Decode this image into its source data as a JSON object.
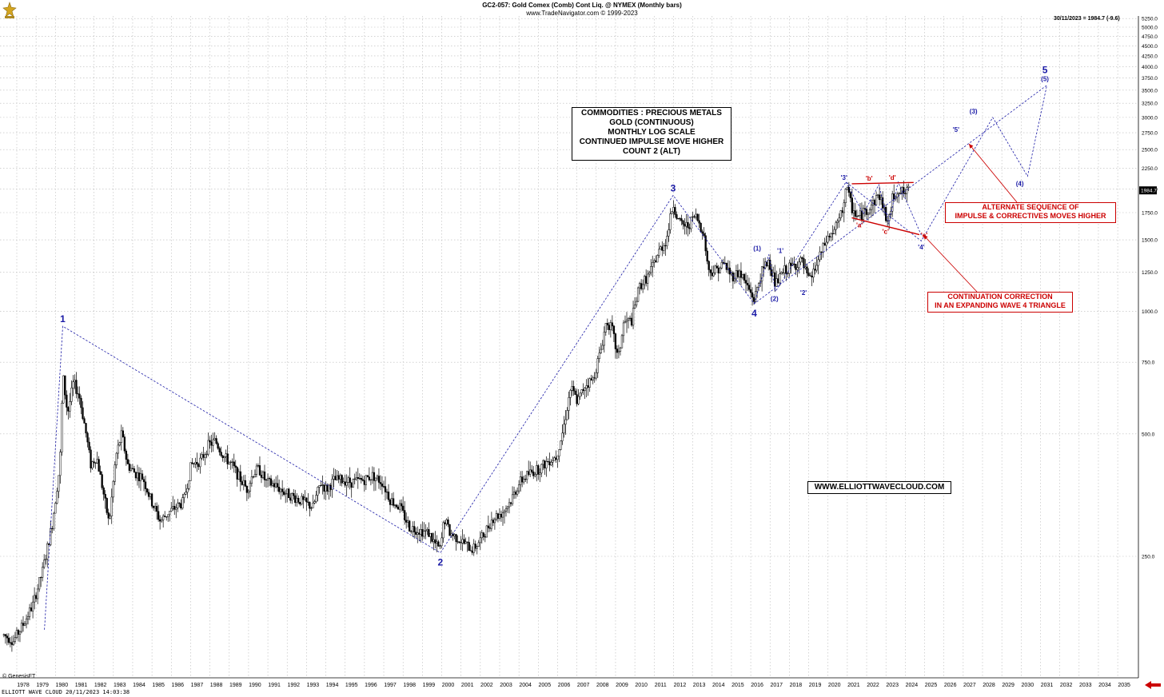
{
  "header": {
    "title": "GC2-057:  Gold Comex (Comb) Cont Liq. @ NYMEX  (Monthly bars)",
    "subtitle": "www.TradeNavigator.com © 1999-2023"
  },
  "last_quote": "30/11/2023 = 1984.7 (-9.6)",
  "price_tag": "1984.7",
  "footer_left": "ELLIOTT WAVE CLOUD   20/11/2023 14:03:38",
  "copyright": "© GenesisFT",
  "info_box": {
    "lines": [
      "COMMODITIES : PRECIOUS METALS",
      "GOLD (CONTINUOUS)",
      "MONTHLY LOG SCALE",
      "CONTINUED IMPULSE MOVE HIGHER",
      "COUNT 2 (ALT)"
    ]
  },
  "website": "WWW.ELLIOTTWAVECLOUD.COM",
  "note_alternate": [
    "ALTERNATE SEQUENCE OF",
    "IMPULSE & CORRECTIVES MOVES HIGHER"
  ],
  "note_continuation": [
    "CONTINUATION CORRECTION",
    "IN AN EXPANDING WAVE 4 TRIANGLE"
  ],
  "colors": {
    "wave_blue": "#1a1aa6",
    "note_red": "#cc0000",
    "candle": "#000000",
    "grid": "#b8b8b8"
  },
  "chart_data": {
    "type": "candlestick",
    "scale": "log",
    "x_range": [
      1977,
      2036
    ],
    "y_range": [
      170,
      5500
    ],
    "grid": true,
    "x_ticks": [
      "1978",
      "1979",
      "1980",
      "1981",
      "1982",
      "1983",
      "1984",
      "1985",
      "1986",
      "1987",
      "1988",
      "1989",
      "1990",
      "1991",
      "1992",
      "1993",
      "1994",
      "1995",
      "1996",
      "1997",
      "1998",
      "1999",
      "2000",
      "2001",
      "2002",
      "2003",
      "2004",
      "2005",
      "2006",
      "2007",
      "2008",
      "2009",
      "2010",
      "2011",
      "2012",
      "2013",
      "2014",
      "2015",
      "2016",
      "2017",
      "2018",
      "2019",
      "2020",
      "2021",
      "2022",
      "2023",
      "2024",
      "2025",
      "2026",
      "2027",
      "2028",
      "2029",
      "2030",
      "2031",
      "2032",
      "2033",
      "2034",
      "2035"
    ],
    "y_ticks": [
      "250.0",
      "500.0",
      "750.0",
      "1000.0",
      "1250.0",
      "1500.0",
      "1750.0",
      "2000.0",
      "2250.0",
      "2500.0",
      "2750.0",
      "3000.0",
      "3250.0",
      "3500.0",
      "3750.0",
      "4000.0",
      "4250.0",
      "4500.0",
      "4750.0",
      "5000.0",
      "5250.0"
    ],
    "price_path": [
      [
        1977.0,
        160
      ],
      [
        1977.5,
        155
      ],
      [
        1978.0,
        170
      ],
      [
        1978.5,
        190
      ],
      [
        1979.0,
        230
      ],
      [
        1979.5,
        300
      ],
      [
        1979.9,
        420
      ],
      [
        1980.05,
        700
      ],
      [
        1980.3,
        560
      ],
      [
        1980.6,
        670
      ],
      [
        1980.9,
        620
      ],
      [
        1981.2,
        520
      ],
      [
        1981.5,
        420
      ],
      [
        1981.8,
        440
      ],
      [
        1982.1,
        370
      ],
      [
        1982.45,
        300
      ],
      [
        1982.8,
        440
      ],
      [
        1983.1,
        500
      ],
      [
        1983.4,
        420
      ],
      [
        1983.8,
        400
      ],
      [
        1984.2,
        390
      ],
      [
        1984.6,
        345
      ],
      [
        1985.1,
        305
      ],
      [
        1985.5,
        320
      ],
      [
        1985.9,
        330
      ],
      [
        1986.3,
        340
      ],
      [
        1986.7,
        420
      ],
      [
        1987.2,
        430
      ],
      [
        1987.6,
        470
      ],
      [
        1987.95,
        480
      ],
      [
        1988.4,
        440
      ],
      [
        1988.8,
        420
      ],
      [
        1989.2,
        390
      ],
      [
        1989.6,
        365
      ],
      [
        1989.9,
        400
      ],
      [
        1990.2,
        410
      ],
      [
        1990.6,
        380
      ],
      [
        1991.0,
        375
      ],
      [
        1991.5,
        360
      ],
      [
        1992.0,
        350
      ],
      [
        1992.5,
        340
      ],
      [
        1993.0,
        330
      ],
      [
        1993.4,
        380
      ],
      [
        1993.7,
        365
      ],
      [
        1994.1,
        385
      ],
      [
        1994.6,
        385
      ],
      [
        1995.0,
        380
      ],
      [
        1995.6,
        385
      ],
      [
        1996.1,
        395
      ],
      [
        1996.6,
        380
      ],
      [
        1997.0,
        345
      ],
      [
        1997.5,
        330
      ],
      [
        1998.0,
        295
      ],
      [
        1998.5,
        290
      ],
      [
        1999.0,
        285
      ],
      [
        1999.4,
        265
      ],
      [
        1999.6,
        260
      ],
      [
        1999.8,
        310
      ],
      [
        2000.1,
        285
      ],
      [
        2000.6,
        275
      ],
      [
        2001.0,
        265
      ],
      [
        2001.3,
        260
      ],
      [
        2001.8,
        280
      ],
      [
        2002.3,
        310
      ],
      [
        2002.8,
        320
      ],
      [
        2003.2,
        340
      ],
      [
        2003.7,
        380
      ],
      [
        2004.2,
        400
      ],
      [
        2004.7,
        410
      ],
      [
        2005.2,
        430
      ],
      [
        2005.6,
        440
      ],
      [
        2005.95,
        510
      ],
      [
        2006.35,
        650
      ],
      [
        2006.7,
        600
      ],
      [
        2007.1,
        660
      ],
      [
        2007.5,
        680
      ],
      [
        2007.9,
        800
      ],
      [
        2008.2,
        950
      ],
      [
        2008.5,
        900
      ],
      [
        2008.8,
        760
      ],
      [
        2009.1,
        940
      ],
      [
        2009.5,
        950
      ],
      [
        2009.9,
        1150
      ],
      [
        2010.4,
        1230
      ],
      [
        2010.9,
        1400
      ],
      [
        2011.3,
        1500
      ],
      [
        2011.65,
        1850
      ],
      [
        2011.95,
        1650
      ],
      [
        2012.4,
        1620
      ],
      [
        2012.8,
        1720
      ],
      [
        2013.2,
        1580
      ],
      [
        2013.5,
        1250
      ],
      [
        2013.9,
        1270
      ],
      [
        2014.3,
        1310
      ],
      [
        2014.7,
        1220
      ],
      [
        2015.1,
        1250
      ],
      [
        2015.5,
        1150
      ],
      [
        2015.85,
        1070
      ],
      [
        2016.2,
        1240
      ],
      [
        2016.6,
        1340
      ],
      [
        2016.95,
        1160
      ],
      [
        2017.4,
        1260
      ],
      [
        2017.8,
        1290
      ],
      [
        2018.3,
        1330
      ],
      [
        2018.7,
        1180
      ],
      [
        2019.1,
        1310
      ],
      [
        2019.6,
        1500
      ],
      [
        2020.0,
        1580
      ],
      [
        2020.4,
        1750
      ],
      [
        2020.6,
        2030
      ],
      [
        2020.9,
        1800
      ],
      [
        2021.2,
        1700
      ],
      [
        2021.7,
        1780
      ],
      [
        2022.2,
        1900
      ],
      [
        2022.3,
        1950
      ],
      [
        2022.8,
        1640
      ],
      [
        2023.0,
        1900
      ],
      [
        2023.3,
        2000
      ],
      [
        2023.6,
        1950
      ],
      [
        2023.85,
        1984.7
      ]
    ],
    "wave_lines": [
      {
        "name": "primary",
        "style": "dashed",
        "points": [
          [
            1979.1,
            165
          ],
          [
            1980.05,
            920
          ],
          [
            1999.6,
            255
          ],
          [
            2011.65,
            1930
          ],
          [
            2015.85,
            1045
          ],
          [
            2031.0,
            3600
          ]
        ]
      },
      {
        "name": "alternate",
        "style": "dashed",
        "points": [
          [
            2015.85,
            1045
          ],
          [
            2016.6,
            1380
          ],
          [
            2016.95,
            1120
          ],
          [
            2020.6,
            2080
          ],
          [
            2024.5,
            1490
          ],
          [
            2028.2,
            3000
          ],
          [
            2030.0,
            2150
          ],
          [
            2031.0,
            3600
          ]
        ]
      },
      {
        "name": "triangle-upper",
        "style": "dashed",
        "points": [
          [
            2020.6,
            2080
          ],
          [
            2021.5,
            1740
          ],
          [
            2022.3,
            2050
          ],
          [
            2022.8,
            1640
          ],
          [
            2023.3,
            2080
          ],
          [
            2024.5,
            1540
          ]
        ]
      }
    ],
    "labels": [
      {
        "text": "1",
        "x": 1980.05,
        "y": 920,
        "color": "blue",
        "pos": "above"
      },
      {
        "text": "2",
        "x": 1999.6,
        "y": 255,
        "color": "blue",
        "pos": "below"
      },
      {
        "text": "3",
        "x": 2011.65,
        "y": 1930,
        "color": "blue",
        "pos": "above"
      },
      {
        "text": "4",
        "x": 2015.85,
        "y": 1045,
        "color": "blue",
        "pos": "below"
      },
      {
        "text": "5",
        "x": 2030.9,
        "y": 3600,
        "color": "blue",
        "pos": "above-big"
      },
      {
        "text": "(5)",
        "x": 2030.9,
        "y": 3600,
        "color": "blue",
        "pos": "above-small"
      },
      {
        "text": "(1)",
        "x": 2016.0,
        "y": 1380,
        "color": "blue",
        "pos": "above-small"
      },
      {
        "text": "(2)",
        "x": 2016.9,
        "y": 1120,
        "color": "blue",
        "pos": "below-small"
      },
      {
        "text": "'1'",
        "x": 2017.2,
        "y": 1360,
        "color": "blue",
        "pos": "above-small"
      },
      {
        "text": "'2'",
        "x": 2018.4,
        "y": 1160,
        "color": "blue",
        "pos": "below-small"
      },
      {
        "text": "'3'",
        "x": 2020.5,
        "y": 2060,
        "color": "blue",
        "pos": "above-small"
      },
      {
        "text": "(3)",
        "x": 2027.2,
        "y": 3000,
        "color": "blue",
        "pos": "above-small"
      },
      {
        "text": "'5'",
        "x": 2026.3,
        "y": 2700,
        "color": "blue",
        "pos": "above-small"
      },
      {
        "text": "(4)",
        "x": 2029.6,
        "y": 2150,
        "color": "blue",
        "pos": "below-small"
      },
      {
        "text": "'4'",
        "x": 2024.5,
        "y": 1500,
        "color": "blue",
        "pos": "below-small"
      },
      {
        "text": "'a'",
        "x": 2021.3,
        "y": 1700,
        "color": "red",
        "pos": "below-small"
      },
      {
        "text": "'b'",
        "x": 2021.8,
        "y": 2050,
        "color": "red",
        "pos": "above-small"
      },
      {
        "text": "'c'",
        "x": 2022.65,
        "y": 1640,
        "color": "red",
        "pos": "below-small"
      },
      {
        "text": "'d'",
        "x": 2023.0,
        "y": 2060,
        "color": "red",
        "pos": "above-small"
      },
      {
        "text": "'e'",
        "x": 2024.4,
        "y": 1540,
        "color": "red",
        "pos": "right-small"
      }
    ]
  }
}
